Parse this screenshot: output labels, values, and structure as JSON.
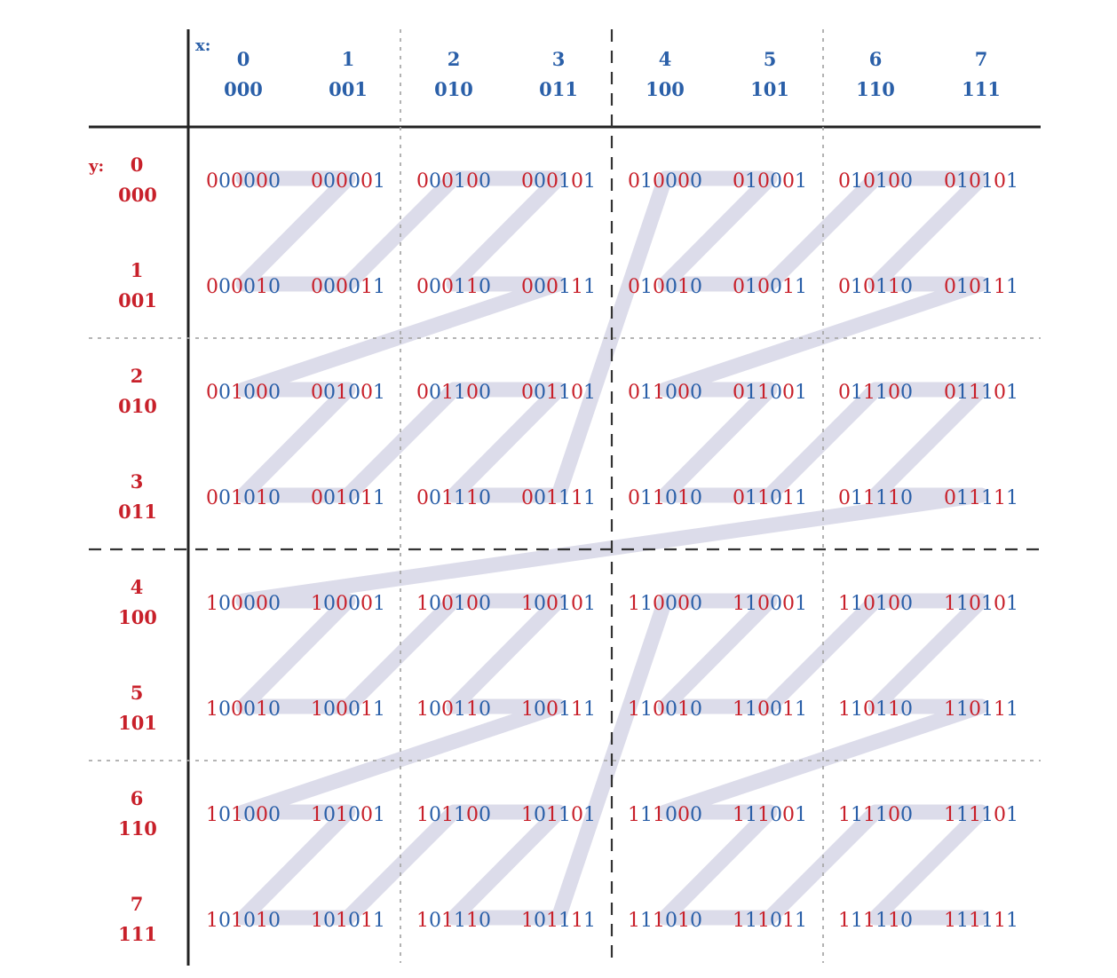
{
  "axes": {
    "x_label": "x:",
    "y_label": "y:",
    "x_decimal": [
      "0",
      "1",
      "2",
      "3",
      "4",
      "5",
      "6",
      "7"
    ],
    "x_binary": [
      "000",
      "001",
      "010",
      "011",
      "100",
      "101",
      "110",
      "111"
    ],
    "y_decimal": [
      "0",
      "1",
      "2",
      "3",
      "4",
      "5",
      "6",
      "7"
    ],
    "y_binary": [
      "000",
      "001",
      "010",
      "011",
      "100",
      "101",
      "110",
      "111"
    ]
  },
  "colors": {
    "x_bit": "#2a5fa8",
    "y_bit": "#c8202a",
    "curve": "#dcdcea",
    "grid": "#222222"
  },
  "description": "Z-order (Morton) curve: cell code interleaves y bits (red) and x bits (blue)"
}
